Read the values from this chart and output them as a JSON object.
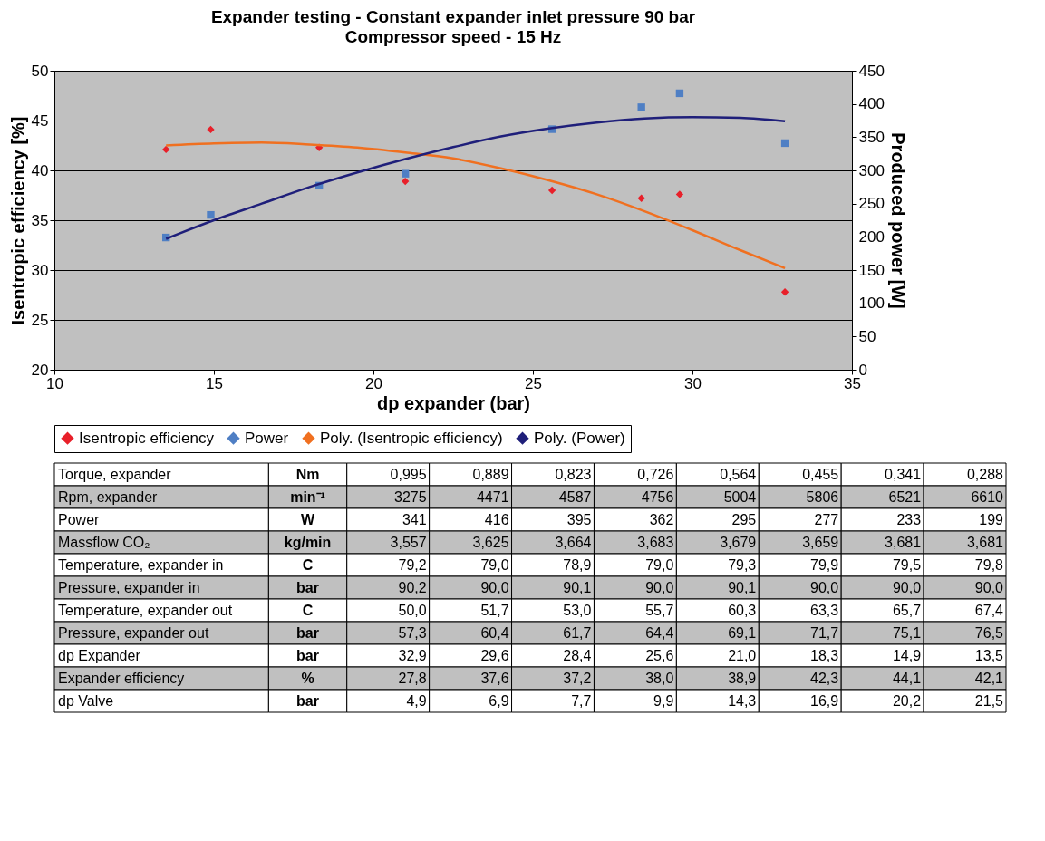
{
  "chart_data": [
    {
      "type": "scatter",
      "title": "Expander testing - Constant expander inlet pressure 90 bar",
      "subtitle": "Compressor speed - 15 Hz",
      "xlabel": "dp expander (bar)",
      "ylabel": "Isentropic efficiency [%]",
      "y2label": "Produced power [W]",
      "xlim": [
        10,
        35
      ],
      "xticks": [
        10,
        15,
        20,
        25,
        30,
        35
      ],
      "ylim": [
        20,
        50
      ],
      "yticks": [
        20,
        25,
        30,
        35,
        40,
        45,
        50
      ],
      "y2lim": [
        0,
        450
      ],
      "y2ticks": [
        0,
        50,
        100,
        150,
        200,
        250,
        300,
        350,
        400,
        450
      ],
      "grid": "y",
      "legend": "bottom",
      "series": [
        {
          "name": "Isentropic efficiency",
          "type": "scatter",
          "marker": "diamond",
          "color": "#e8202a",
          "x": [
            13.5,
            14.9,
            18.3,
            21.0,
            25.6,
            28.4,
            29.6,
            32.9
          ],
          "values": [
            42.1,
            44.1,
            42.3,
            38.9,
            38.0,
            37.2,
            37.6,
            27.8
          ]
        },
        {
          "name": "Power",
          "type": "scatter",
          "marker": "square",
          "color": "#4f7fc4",
          "axis": "y2",
          "x": [
            13.5,
            14.9,
            18.3,
            21.0,
            25.6,
            28.4,
            29.6,
            32.9
          ],
          "values": [
            199,
            233,
            277,
            295,
            362,
            395,
            416,
            341
          ]
        },
        {
          "name": "Poly. (Isentropic efficiency)",
          "type": "line",
          "color": "#f07020",
          "x": [
            13.5,
            15,
            16.5,
            18,
            19.5,
            21,
            22.5,
            24,
            25.5,
            27,
            28.5,
            30,
            31.5,
            32.9
          ],
          "values": [
            42.5,
            42.7,
            42.8,
            42.6,
            42.3,
            41.8,
            41.2,
            40.2,
            39.0,
            37.6,
            35.9,
            34.0,
            32.0,
            30.2
          ]
        },
        {
          "name": "Poly. (Power)",
          "type": "line",
          "color": "#1f1f7a",
          "axis": "y2",
          "x": [
            13.5,
            15,
            16.5,
            18,
            19.5,
            21,
            22.5,
            24,
            25.5,
            27,
            28.5,
            30,
            31.5,
            32.9
          ],
          "values": [
            197,
            225,
            250,
            275,
            297,
            317,
            335,
            351,
            363,
            372,
            378,
            380,
            379,
            374
          ]
        }
      ]
    },
    {
      "type": "heatmap",
      "categories": [
        null,
        null,
        null,
        null,
        null,
        null,
        null,
        null
      ],
      "y_categories": [
        "Torque, expander",
        "Rpm, expander",
        "Power",
        "Massflow CO₂",
        "Temperature, expander in",
        "Pressure, expander in",
        "Temperature, expander out",
        "Pressure, expander out",
        "dp Expander",
        "Expander efficiency",
        "dp Valve"
      ],
      "y2_categories": [
        "Nm",
        "min⁻¹",
        "W",
        "kg/min",
        "C",
        "bar",
        "C",
        "bar",
        "bar",
        "%",
        "bar"
      ],
      "cells": [
        [
          0.995,
          0.889,
          0.823,
          0.726,
          0.564,
          0.455,
          0.341,
          0.288
        ],
        [
          3275,
          4471,
          4587,
          4756,
          5004,
          5806,
          6521,
          6610
        ],
        [
          341,
          416,
          395,
          362,
          295,
          277,
          233,
          199
        ],
        [
          3.557,
          3.625,
          3.664,
          3.683,
          3.679,
          3.659,
          3.681,
          3.681
        ],
        [
          79.2,
          79.0,
          78.9,
          79.0,
          79.3,
          79.9,
          79.5,
          79.8
        ],
        [
          90.2,
          90.0,
          90.1,
          90.0,
          90.1,
          90.0,
          90.0,
          90.0
        ],
        [
          50.0,
          51.7,
          53.0,
          55.7,
          60.3,
          63.3,
          65.7,
          67.4
        ],
        [
          57.3,
          60.4,
          61.7,
          64.4,
          69.1,
          71.7,
          75.1,
          76.5
        ],
        [
          32.9,
          29.6,
          28.4,
          25.6,
          21.0,
          18.3,
          14.9,
          13.5
        ],
        [
          27.8,
          37.6,
          37.2,
          38.0,
          38.9,
          42.3,
          44.1,
          42.1
        ],
        [
          4.9,
          6.9,
          7.7,
          9.9,
          14.3,
          16.9,
          20.2,
          21.5
        ]
      ],
      "cell_labels": [
        [
          "0,995",
          "0,889",
          "0,823",
          "0,726",
          "0,564",
          "0,455",
          "0,341",
          "0,288"
        ],
        [
          "3275",
          "4471",
          "4587",
          "4756",
          "5004",
          "5806",
          "6521",
          "6610"
        ],
        [
          "341",
          "416",
          "395",
          "362",
          "295",
          "277",
          "233",
          "199"
        ],
        [
          "3,557",
          "3,625",
          "3,664",
          "3,683",
          "3,679",
          "3,659",
          "3,681",
          "3,681"
        ],
        [
          "79,2",
          "79,0",
          "78,9",
          "79,0",
          "79,3",
          "79,9",
          "79,5",
          "79,8"
        ],
        [
          "90,2",
          "90,0",
          "90,1",
          "90,0",
          "90,1",
          "90,0",
          "90,0",
          "90,0"
        ],
        [
          "50,0",
          "51,7",
          "53,0",
          "55,7",
          "60,3",
          "63,3",
          "65,7",
          "67,4"
        ],
        [
          "57,3",
          "60,4",
          "61,7",
          "64,4",
          "69,1",
          "71,7",
          "75,1",
          "76,5"
        ],
        [
          "32,9",
          "29,6",
          "28,4",
          "25,6",
          "21,0",
          "18,3",
          "14,9",
          "13,5"
        ],
        [
          "27,8",
          "37,6",
          "37,2",
          "38,0",
          "38,9",
          "42,3",
          "44,1",
          "42,1"
        ],
        [
          "4,9",
          "6,9",
          "7,7",
          "9,9",
          "14,3",
          "16,9",
          "20,2",
          "21,5"
        ]
      ]
    }
  ]
}
